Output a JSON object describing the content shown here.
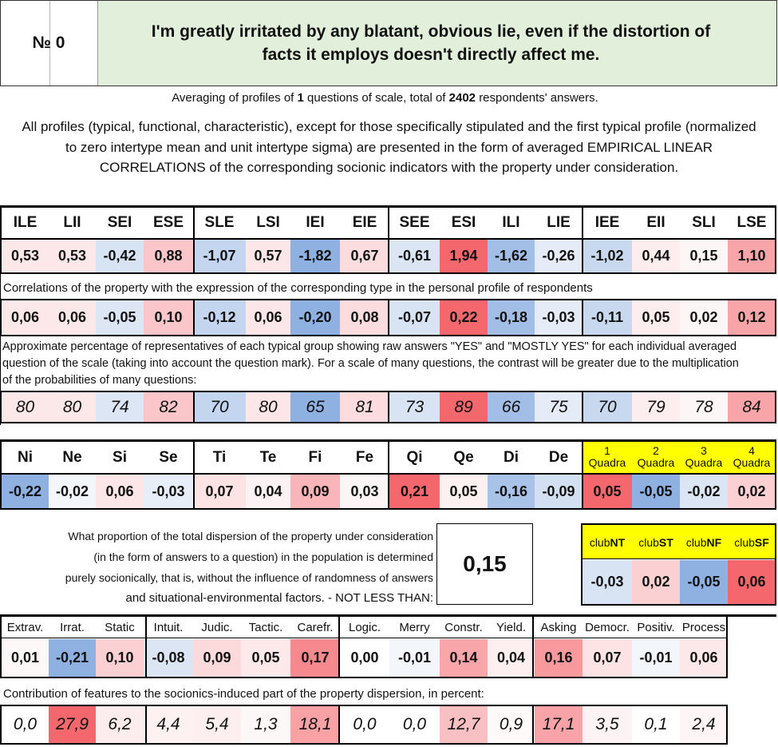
{
  "header": {
    "number_label": "№ 0",
    "question": "I'm greatly irritated by any blatant, obvious lie, even if the distortion of facts it employs doesn't directly affect me."
  },
  "summary": {
    "prefix": "Averaging of profiles of",
    "n_questions": "1",
    "middle": "questions of scale, total of",
    "n_respondents": "2402",
    "suffix": "respondents' answers."
  },
  "description": "All profiles (typical, functional, characteristic), except for those specifically stipulated and the first typical profile (normalized to zero intertype mean and unit intertype sigma) are presented in the form of averaged EMPIRICAL LINEAR CORRELATIONS of the corresponding socionic indicators with the property under consideration.",
  "types": {
    "labels": [
      "ILE",
      "LII",
      "SEI",
      "ESE",
      "SLE",
      "LSI",
      "IEI",
      "EIE",
      "SEE",
      "ESI",
      "ILI",
      "LIE",
      "IEE",
      "EII",
      "SLI",
      "LSE"
    ],
    "values": [
      "0,53",
      "0,53",
      "-0,42",
      "0,88",
      "-1,07",
      "0,57",
      "-1,82",
      "0,67",
      "-0,61",
      "1,94",
      "-1,62",
      "-0,26",
      "-1,02",
      "0,44",
      "0,15",
      "1,10"
    ],
    "bg": [
      "#fde8e9",
      "#fde8e9",
      "#d8e3f3",
      "#fac6c9",
      "#c4d6ef",
      "#fde6e7",
      "#8eb1e2",
      "#fcdcde",
      "#dbe5f3",
      "#f4686d",
      "#a3bee6",
      "#e5ecf7",
      "#c8d8ef",
      "#feedee",
      "#fdf6f7",
      "#f7a5a9"
    ]
  },
  "corr_note": "Correlations of the property with the expression of the corresponding type in the personal profile of respondents",
  "corr": {
    "values": [
      "0,06",
      "0,06",
      "-0,05",
      "0,10",
      "-0,12",
      "0,06",
      "-0,20",
      "0,08",
      "-0,07",
      "0,22",
      "-0,18",
      "-0,03",
      "-0,11",
      "0,05",
      "0,02",
      "0,12"
    ],
    "bg": [
      "#fde8e9",
      "#fde8e9",
      "#dde6f4",
      "#fac6c9",
      "#c4d6ef",
      "#fde6e7",
      "#8eb1e2",
      "#fcdcde",
      "#d8e3f3",
      "#f4686d",
      "#a3bee6",
      "#e5ecf7",
      "#c8d8ef",
      "#feedee",
      "#fdf6f7",
      "#f7a5a9"
    ]
  },
  "pct_note": "Approximate percentage of representatives of each typical group showing raw answers \"YES\" and \"MOSTLY YES\" for each individual averaged question of the scale (taking into account the question mark). For a scale of many questions, the contrast will be greater due to the multiplication of the probabilities of many questions:",
  "pct": {
    "values": [
      "80",
      "80",
      "74",
      "82",
      "70",
      "80",
      "65",
      "81",
      "73",
      "89",
      "66",
      "75",
      "70",
      "79",
      "78",
      "84"
    ],
    "bg": [
      "#fde8e9",
      "#fde8e9",
      "#dde6f4",
      "#fac6c9",
      "#c4d6ef",
      "#fde6e7",
      "#8eb1e2",
      "#fcdcde",
      "#d8e3f3",
      "#f4686d",
      "#a3bee6",
      "#e5ecf7",
      "#c8d8ef",
      "#feedee",
      "#fdf6f7",
      "#f7a5a9"
    ]
  },
  "functions": {
    "labels": [
      "Ni",
      "Ne",
      "Si",
      "Se",
      "Ti",
      "Te",
      "Fi",
      "Fe",
      "Qi",
      "Qe",
      "Di",
      "De"
    ],
    "values": [
      "-0,22",
      "-0,02",
      "0,06",
      "-0,03",
      "0,07",
      "0,04",
      "0,09",
      "0,03",
      "0,21",
      "0,05",
      "-0,16",
      "-0,09"
    ],
    "bg": [
      "#8eb1e2",
      "#f3f6fb",
      "#fde6e7",
      "#e7eef8",
      "#fde3e4",
      "#fdf2f3",
      "#f9b5b9",
      "#fdf4f5",
      "#f4686d",
      "#fdf0f1",
      "#a9c2e7",
      "#d3e0f2"
    ]
  },
  "quadras": {
    "numbers": [
      "1",
      "2",
      "3",
      "4"
    ],
    "word": "Quadra",
    "values": [
      "0,05",
      "-0,05",
      "-0,02",
      "0,02"
    ],
    "bg": [
      "#f4686d",
      "#8eb1e2",
      "#dbe5f3",
      "#fbd0d2"
    ],
    "header_bg": "#ffff00"
  },
  "dispersion": {
    "lines": [
      "What proportion of the total dispersion of the property under consideration",
      "(in the form of answers to a question) in the population is determined",
      "purely socionically, that is, without the influence of randomness of answers",
      "and situational-environmental factors. - NOT LESS THAN:"
    ],
    "value": "0,15",
    "value_bg": "#ffff00"
  },
  "clubs": {
    "prefix": "club",
    "names": [
      "NT",
      "ST",
      "NF",
      "SF"
    ],
    "values": [
      "-0,03",
      "0,02",
      "-0,05",
      "0,06"
    ],
    "bg": [
      "#d8e3f3",
      "#fbd0d2",
      "#8eb1e2",
      "#f4686d"
    ]
  },
  "traits": {
    "labels": [
      "Extrav.",
      "Irrat.",
      "Static",
      "Intuit.",
      "Judic.",
      "Tactic.",
      "Carefr.",
      "Logic.",
      "Merry",
      "Constr.",
      "Yield.",
      "Asking",
      "Democr.",
      "Positiv.",
      "Process"
    ],
    "values": [
      "0,01",
      "-0,21",
      "0,10",
      "-0,08",
      "0,09",
      "0,05",
      "0,17",
      "0,00",
      "-0,01",
      "0,14",
      "0,04",
      "0,16",
      "0,07",
      "-0,01",
      "0,06"
    ],
    "bg": [
      "#fdf8f8",
      "#8eb1e2",
      "#fbd0d2",
      "#dbe5f3",
      "#fcd9db",
      "#fde9ea",
      "#f6898d",
      "#ffffff",
      "#f3f6fb",
      "#f8a6aa",
      "#fdeeef",
      "#f7999d",
      "#fde3e4",
      "#f3f6fb",
      "#fde8e9"
    ]
  },
  "contrib_note": "Contribution of features to the sociotics-induced part of the property dispersion, in percent:",
  "contrib": {
    "values": [
      "0,0",
      "27,9",
      "6,2",
      "4,4",
      "5,4",
      "1,3",
      "18,1",
      "0,0",
      "0,0",
      "12,7",
      "0,9",
      "17,1",
      "3,5",
      "0,1",
      "2,4"
    ],
    "bg": [
      "#ffffff",
      "#f4686d",
      "#fdeced",
      "#fdf1f2",
      "#fdeeef",
      "#fdf8f8",
      "#f8a2a6",
      "#ffffff",
      "#ffffff",
      "#f9c0c3",
      "#fefafa",
      "#f7a3a7",
      "#fdf3f4",
      "#ffffff",
      "#fdf5f6"
    ]
  }
}
